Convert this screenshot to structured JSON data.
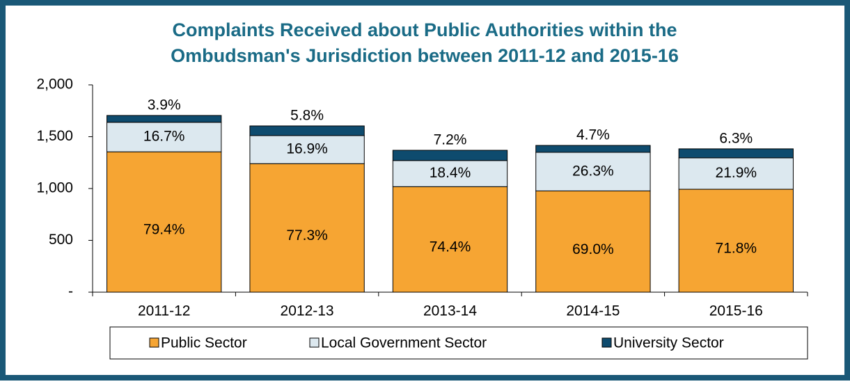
{
  "chart_data": {
    "type": "stacked_bar",
    "title": "Complaints Received about Public Authorities within the",
    "subtitle": "Ombudsman's Jurisdiction between 2011-12 and 2015-16",
    "categories": [
      "2011-12",
      "2012-13",
      "2013-14",
      "2014-15",
      "2015-16"
    ],
    "series": [
      {
        "name": "Public Sector",
        "color": "#f6a533",
        "values": [
          1354,
          1240,
          1018,
          977,
          993
        ],
        "share_labels": [
          "79.4%",
          "77.3%",
          "74.4%",
          "69.0%",
          "71.8%"
        ]
      },
      {
        "name": "Local Government Sector",
        "color": "#dce8ef",
        "values": [
          285,
          271,
          252,
          372,
          303
        ],
        "share_labels": [
          "16.7%",
          "16.9%",
          "18.4%",
          "26.3%",
          "21.9%"
        ]
      },
      {
        "name": "University Sector",
        "color": "#0e4b6e",
        "values": [
          66,
          93,
          99,
          67,
          87
        ],
        "share_labels": [
          "3.9%",
          "5.8%",
          "7.2%",
          "4.7%",
          "6.3%"
        ]
      }
    ],
    "ylim": [
      0,
      2000
    ],
    "yticks": [
      {
        "value": 0,
        "label": "-"
      },
      500,
      {
        "value": 1000,
        "label": "1,000"
      },
      {
        "value": 1500,
        "label": "1,500"
      },
      {
        "value": 2000,
        "label": "2,000"
      }
    ],
    "legend": "bottom"
  }
}
